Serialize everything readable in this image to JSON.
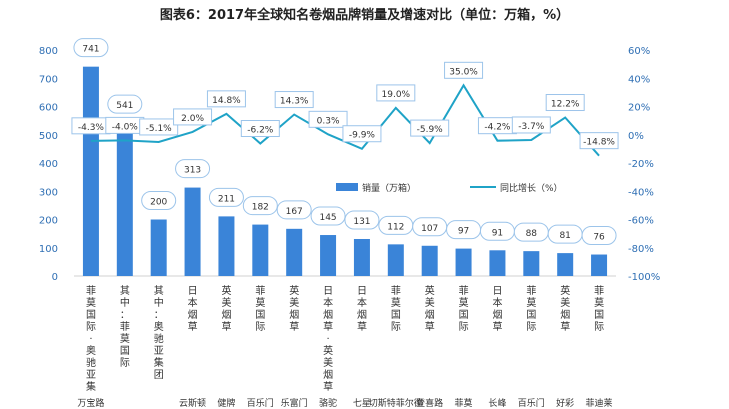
{
  "chart_data": {
    "type": "bar",
    "title": "图表6：2017年全球知名卷烟品牌销量及增速对比（单位：万箱，%）",
    "categories": [
      "菲莫国际·奥驰亚集团",
      "其中：菲莫国际",
      "其中：奥驰亚集团",
      "日本烟草",
      "英美烟草",
      "菲莫国际",
      "英美烟草",
      "日本烟草·英美烟草",
      "日本烟草",
      "菲莫国际",
      "英美烟草",
      "菲莫国际",
      "日本烟草",
      "菲莫国际",
      "英美烟草",
      "菲莫国际"
    ],
    "bottom_labels": [
      "万宝路",
      "",
      "",
      "云斯顿",
      "健牌",
      "百乐门",
      "乐富门",
      "骆驼",
      "七星",
      "切斯特菲尔德",
      "登喜路",
      "菲莫",
      "长峰",
      "百乐门",
      "好彩",
      "菲迪莱"
    ],
    "series": [
      {
        "name": "销量（万箱）",
        "type": "bar",
        "axis": "left",
        "values": [
          741,
          541,
          200,
          313,
          211,
          182,
          167,
          145,
          131,
          112,
          107,
          97,
          91,
          88,
          81,
          76
        ]
      },
      {
        "name": "同比增长（%）",
        "type": "line",
        "axis": "right",
        "values": [
          -4.3,
          -4.0,
          -5.1,
          2.0,
          14.8,
          -6.2,
          14.3,
          0.3,
          -9.9,
          19.0,
          -5.9,
          35.0,
          -4.2,
          -3.7,
          12.2,
          -14.8
        ]
      }
    ],
    "value_labels": [
      "741",
      "541",
      "200",
      "313",
      "211",
      "182",
      "167",
      "145",
      "131",
      "112",
      "107",
      "97",
      "91",
      "88",
      "81",
      "76"
    ],
    "growth_labels": [
      "-4.3%",
      "-4.0%",
      "-5.1%",
      "2.0%",
      "14.8%",
      "-6.2%",
      "14.3%",
      "0.3%",
      "-9.9%",
      "19.0%",
      "-5.9%",
      "35.0%",
      "-4.2%",
      "-3.7%",
      "12.2%",
      "-14.8%"
    ],
    "ylim_left": [
      0,
      800
    ],
    "ylim_right": [
      -100,
      60
    ],
    "left_ticks": [
      "0",
      "100",
      "200",
      "300",
      "400",
      "500",
      "600",
      "700",
      "800"
    ],
    "right_ticks": [
      "-100%",
      "-80%",
      "-60%",
      "-40%",
      "-20%",
      "0%",
      "20%",
      "40%",
      "60%"
    ],
    "legend_position": "center",
    "grid": false
  },
  "colors": {
    "bar": "#3a84d8",
    "line": "#1fa3c7",
    "axis_text": "#2f6fb4",
    "label_border": "#9cc4ea"
  }
}
